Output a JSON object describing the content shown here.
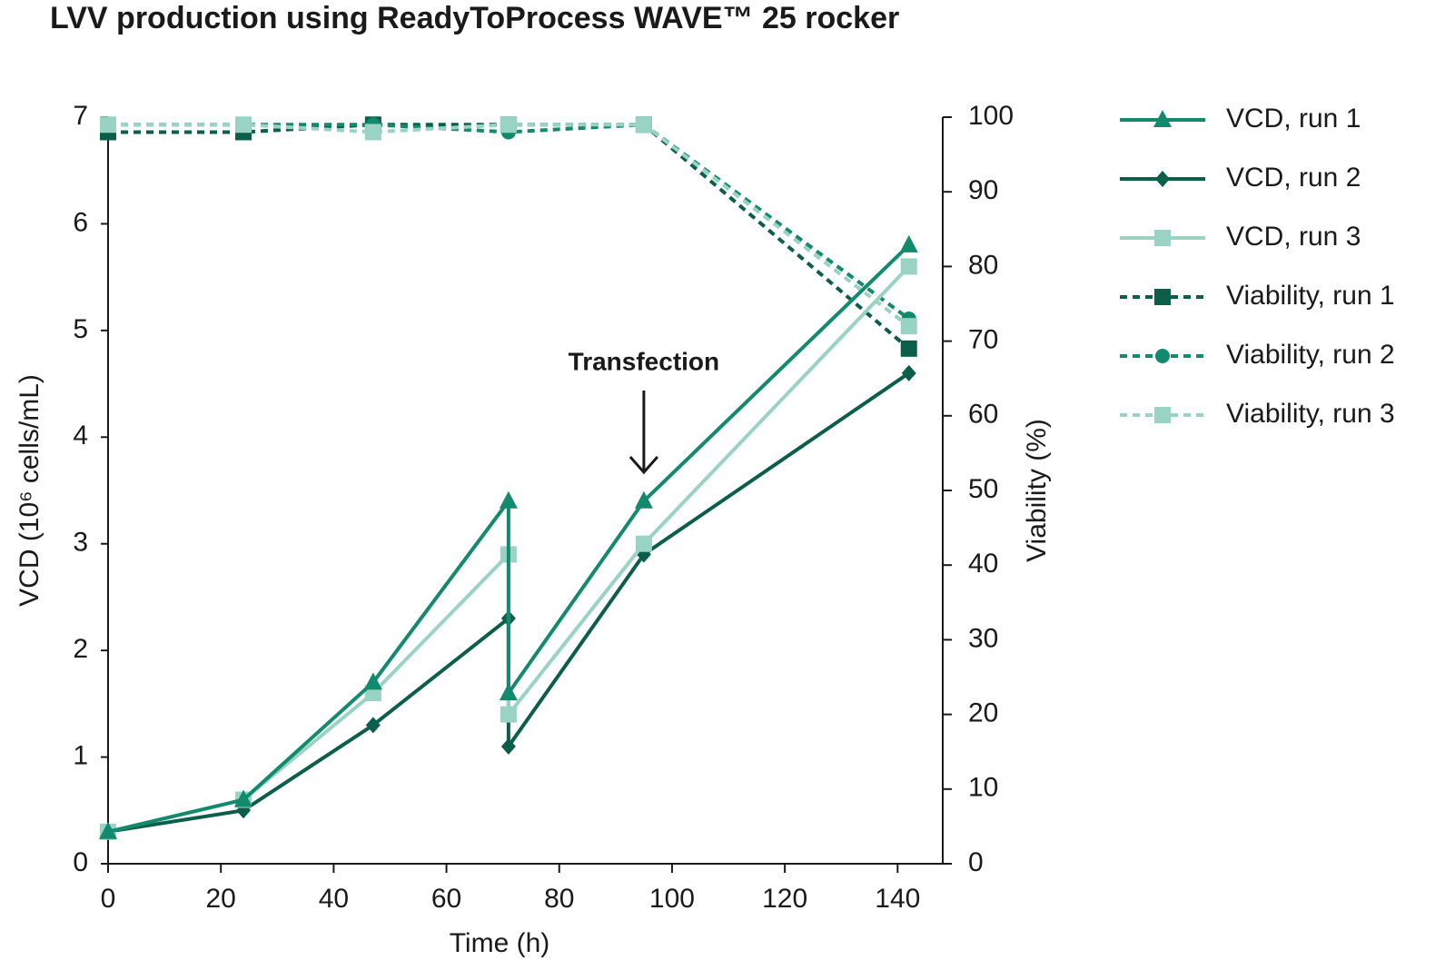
{
  "chart_data": {
    "type": "line",
    "title": "LVV production using ReadyToProcess WAVE™ 25 rocker",
    "x_label": "Time (h)",
    "y_label": "VCD (10⁶ cells/mL)",
    "y2_label": "Viability (%)",
    "annotation": {
      "text": "Transfection",
      "x": 95
    },
    "xlim": [
      0,
      148
    ],
    "xticks": [
      0,
      20,
      40,
      60,
      80,
      100,
      120,
      140
    ],
    "ylim": [
      0,
      7
    ],
    "yticks": [
      0,
      1,
      2,
      3,
      4,
      5,
      6,
      7
    ],
    "y2lim": [
      0,
      100
    ],
    "y2ticks": [
      0,
      10,
      20,
      30,
      40,
      50,
      60,
      70,
      80,
      90,
      100
    ],
    "legend": "right",
    "series": [
      {
        "name": "VCD, run 1",
        "color": "#118a6e",
        "marker": "triangle",
        "linestyle": "solid",
        "axis": "y",
        "x": [
          0,
          24,
          47,
          71,
          71,
          95,
          142
        ],
        "values": [
          0.3,
          0.6,
          1.7,
          3.4,
          1.6,
          3.4,
          5.8
        ]
      },
      {
        "name": "VCD, run 2",
        "color": "#0b5e4a",
        "marker": "diamond",
        "linestyle": "solid",
        "axis": "y",
        "x": [
          0,
          24,
          47,
          71,
          71,
          95,
          142
        ],
        "values": [
          0.3,
          0.5,
          1.3,
          2.3,
          1.1,
          2.9,
          4.6
        ]
      },
      {
        "name": "VCD, run 3",
        "color": "#98d3c3",
        "marker": "square",
        "linestyle": "solid",
        "axis": "y",
        "x": [
          0,
          24,
          47,
          71,
          71,
          95,
          142
        ],
        "values": [
          0.3,
          0.6,
          1.6,
          2.9,
          1.4,
          3.0,
          5.6
        ]
      },
      {
        "name": "Viability, run 1",
        "color": "#0b5e4a",
        "marker": "square",
        "linestyle": "dashed",
        "axis": "y2",
        "x": [
          0,
          24,
          47,
          71,
          95,
          142
        ],
        "values": [
          98,
          98,
          99,
          99,
          99,
          69
        ]
      },
      {
        "name": "Viability, run 2",
        "color": "#118a6e",
        "marker": "circle",
        "linestyle": "dashed",
        "axis": "y2",
        "x": [
          0,
          24,
          47,
          71,
          95,
          142
        ],
        "values": [
          99,
          99,
          99,
          98,
          99,
          73
        ]
      },
      {
        "name": "Viability, run 3",
        "color": "#98d3c3",
        "marker": "square",
        "linestyle": "dashed",
        "axis": "y2",
        "x": [
          0,
          24,
          47,
          71,
          95,
          142
        ],
        "values": [
          99,
          99,
          98,
          99,
          99,
          72
        ]
      }
    ]
  }
}
